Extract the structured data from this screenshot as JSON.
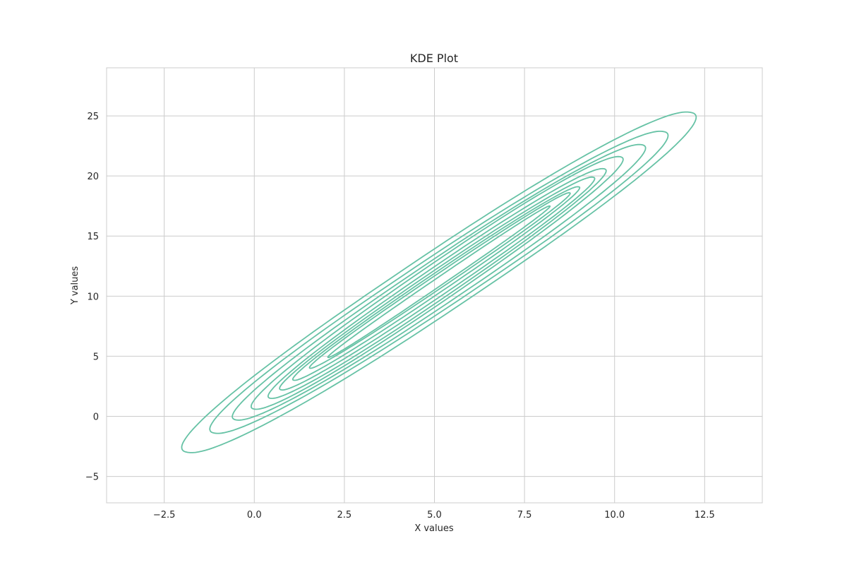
{
  "chart_data": {
    "type": "contour",
    "title": "KDE Plot",
    "xlabel": "X values",
    "ylabel": "Y values",
    "xlim": [
      -4.1,
      14.1
    ],
    "ylim": [
      -7.2,
      29.0
    ],
    "xticks": [
      -2.5,
      0.0,
      2.5,
      5.0,
      7.5,
      10.0,
      12.5
    ],
    "xtick_labels": [
      "−2.5",
      "0.0",
      "2.5",
      "5.0",
      "7.5",
      "10.0",
      "12.5"
    ],
    "yticks": [
      -5,
      0,
      5,
      10,
      15,
      20,
      25
    ],
    "ytick_labels": [
      "−5",
      "0",
      "5",
      "10",
      "15",
      "20",
      "25"
    ],
    "grid": true,
    "line_color": "#66c2a5",
    "grid_color": "#cccccc",
    "contour_center": [
      5.05,
      11.55
    ],
    "contours": [
      {
        "level": 1,
        "endpoints": [
          [
            -1.85,
            -3.0
          ],
          [
            12.1,
            25.3
          ]
        ],
        "half_width": 1.35
      },
      {
        "level": 2,
        "endpoints": [
          [
            -1.1,
            -1.4
          ],
          [
            11.35,
            23.7
          ]
        ],
        "half_width": 1.15
      },
      {
        "level": 3,
        "endpoints": [
          [
            -0.5,
            -0.3
          ],
          [
            10.75,
            22.6
          ]
        ],
        "half_width": 0.98
      },
      {
        "level": 4,
        "endpoints": [
          [
            0.0,
            0.6
          ],
          [
            10.15,
            21.6
          ]
        ],
        "half_width": 0.82
      },
      {
        "level": 5,
        "endpoints": [
          [
            0.45,
            1.5
          ],
          [
            9.7,
            20.6
          ]
        ],
        "half_width": 0.68
      },
      {
        "level": 6,
        "endpoints": [
          [
            0.75,
            2.2
          ],
          [
            9.4,
            19.9
          ]
        ],
        "half_width": 0.55
      },
      {
        "level": 7,
        "endpoints": [
          [
            1.1,
            3.0
          ],
          [
            9.0,
            19.1
          ]
        ],
        "half_width": 0.42
      },
      {
        "level": 8,
        "endpoints": [
          [
            1.55,
            4.0
          ],
          [
            8.75,
            18.6
          ]
        ],
        "half_width": 0.3
      },
      {
        "level": 9,
        "endpoints": [
          [
            2.05,
            4.9
          ],
          [
            8.2,
            17.5
          ]
        ],
        "half_width": 0.18
      }
    ]
  }
}
